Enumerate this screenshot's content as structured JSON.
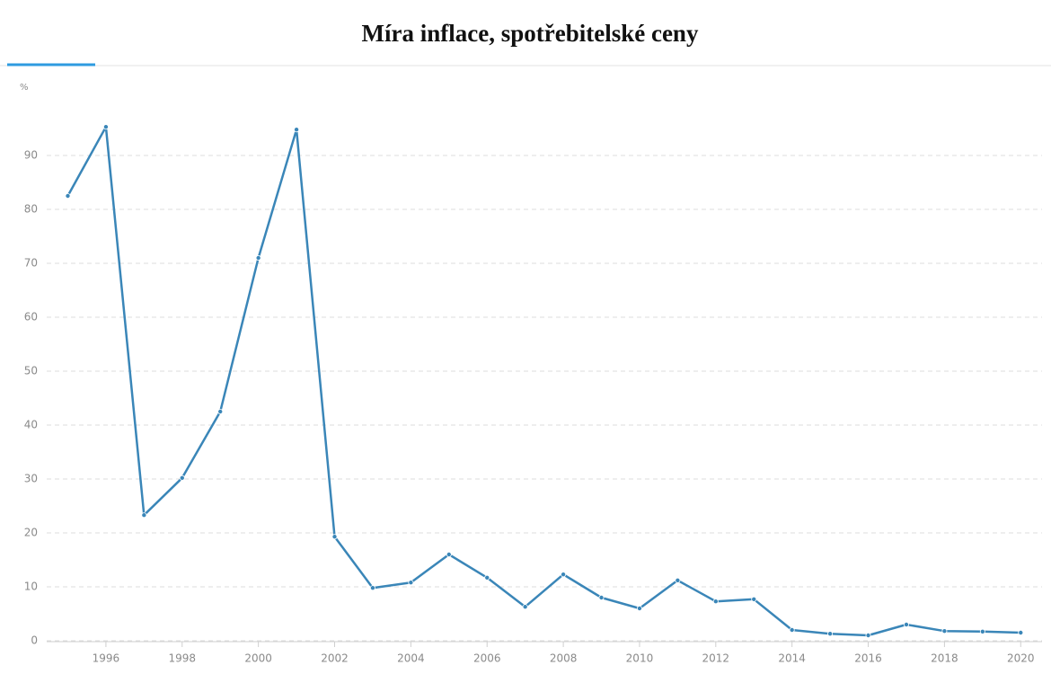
{
  "chart_data": {
    "type": "line",
    "title": "Míra inflace, spotřebitelské ceny",
    "y_unit": "%",
    "x": [
      1995,
      1996,
      1997,
      1998,
      1999,
      2000,
      2001,
      2002,
      2003,
      2004,
      2005,
      2006,
      2007,
      2008,
      2009,
      2010,
      2011,
      2012,
      2013,
      2014,
      2015,
      2016,
      2017,
      2018,
      2019,
      2020
    ],
    "series": [
      {
        "name": "Míra inflace, spotřebitelské ceny",
        "color": "#3a86b8",
        "values": [
          82.5,
          95.3,
          23.3,
          30.2,
          42.5,
          71,
          94.8,
          19.3,
          9.8,
          10.8,
          16,
          11.7,
          6.3,
          12.3,
          8,
          6,
          11.2,
          7.3,
          7.7,
          2,
          1.3,
          1,
          3,
          1.8,
          1.7,
          1.5
        ]
      }
    ],
    "xlim": [
      1994.8,
      2020.3
    ],
    "xticks": [
      1996,
      1998,
      2000,
      2002,
      2004,
      2006,
      2008,
      2010,
      2012,
      2014,
      2016,
      2018,
      2020
    ],
    "ylim": [
      0,
      100
    ],
    "yticks": [
      0,
      10,
      20,
      30,
      40,
      50,
      60,
      70,
      80,
      90
    ],
    "grid": true
  }
}
